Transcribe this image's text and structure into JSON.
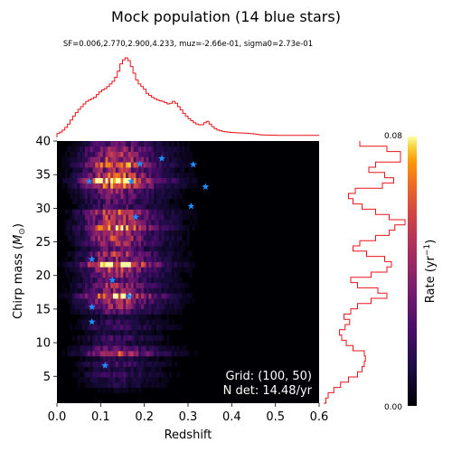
{
  "chart_data": {
    "type": "heatmap",
    "title": "Mock population (14 blue stars)",
    "subtitle": "SF=0.006,2.770,2.900,4.233, muz=-2.66e-01, sigma0=2.73e-01",
    "xlabel": "Redshift",
    "ylabel": "Chirp mass (M☉)",
    "ylabel_main": "Chirp mass (",
    "ylabel_unit_symbol": "M",
    "ylabel_unit_sub": "⊙",
    "ylabel_close": ")",
    "xlim": [
      0.0,
      0.6
    ],
    "ylim": [
      1.0,
      40.0
    ],
    "xticks": [
      0.0,
      0.1,
      0.2,
      0.3,
      0.4,
      0.5,
      0.6
    ],
    "xtick_labels": [
      "0.0",
      "0.1",
      "0.2",
      "0.3",
      "0.4",
      "0.5",
      "0.6"
    ],
    "yticks": [
      5,
      10,
      15,
      20,
      25,
      30,
      35,
      40
    ],
    "ytick_labels": [
      "5",
      "10",
      "15",
      "20",
      "25",
      "30",
      "35",
      "40"
    ],
    "grid_shape": [
      100,
      50
    ],
    "colorbar": {
      "label_main": "Rate (yr",
      "label_sup": "−1",
      "label_close": ")",
      "vmin": 0.0,
      "vmax": 0.08,
      "tick_labels": [
        "0.00",
        "0.08"
      ],
      "colormap": "inferno"
    },
    "annotation": {
      "grid_text": "Grid: (100, 50)",
      "ndet_text": "N det: 14.48/yr"
    },
    "stars": [
      {
        "z": 0.11,
        "mc": 6.6
      },
      {
        "z": 0.08,
        "mc": 13.1
      },
      {
        "z": 0.08,
        "mc": 15.3
      },
      {
        "z": 0.165,
        "mc": 16.9
      },
      {
        "z": 0.127,
        "mc": 19.3
      },
      {
        "z": 0.08,
        "mc": 22.4
      },
      {
        "z": 0.18,
        "mc": 28.7
      },
      {
        "z": 0.307,
        "mc": 30.3
      },
      {
        "z": 0.34,
        "mc": 33.2
      },
      {
        "z": 0.074,
        "mc": 34.0
      },
      {
        "z": 0.17,
        "mc": 34.0
      },
      {
        "z": 0.19,
        "mc": 36.6
      },
      {
        "z": 0.312,
        "mc": 36.5
      },
      {
        "z": 0.24,
        "mc": 37.4
      }
    ],
    "marginal_z": {
      "bin_edges_start": 0.0,
      "bin_width": 0.006,
      "values": [
        0.6,
        0.8,
        1.1,
        1.5,
        2.0,
        2.6,
        3.2,
        3.7,
        4.2,
        4.6,
        5.0,
        5.4,
        5.6,
        5.8,
        6.0,
        6.4,
        6.8,
        7.1,
        7.3,
        7.6,
        8.0,
        8.4,
        9.0,
        9.9,
        11.0,
        11.6,
        11.9,
        11.5,
        10.6,
        9.6,
        8.6,
        8.0,
        7.6,
        7.2,
        6.6,
        6.3,
        6.0,
        5.8,
        5.6,
        5.5,
        5.4,
        5.2,
        5.0,
        5.1,
        5.4,
        5.1,
        4.6,
        4.1,
        3.6,
        3.2,
        2.8,
        2.5,
        2.2,
        2.0,
        1.9,
        1.9,
        2.2,
        2.4,
        2.0,
        1.6,
        1.3,
        1.1,
        1.0,
        0.9,
        0.85,
        0.8,
        0.75,
        0.72,
        0.7,
        0.68,
        0.66,
        0.64,
        0.62,
        0.6,
        0.55,
        0.5,
        0.45,
        0.4,
        0.38,
        0.36,
        0.35,
        0.34,
        0.33,
        0.32,
        0.31,
        0.3,
        0.3,
        0.3,
        0.3,
        0.3,
        0.3,
        0.3,
        0.3,
        0.3,
        0.3,
        0.3,
        0.3,
        0.3,
        0.3,
        0.3
      ]
    },
    "marginal_mc": {
      "bin_edges_start": 1.0,
      "bin_width": 0.78,
      "values": [
        0.2,
        0.4,
        0.9,
        1.5,
        2.2,
        3.0,
        3.4,
        3.6,
        3.7,
        3.6,
        2.6,
        2.0,
        1.6,
        1.4,
        1.9,
        2.3,
        1.8,
        2.4,
        3.0,
        4.2,
        5.6,
        4.8,
        3.0,
        2.4,
        4.2,
        5.6,
        6.0,
        5.4,
        3.8,
        2.6,
        3.2,
        4.6,
        5.8,
        6.3,
        7.2,
        5.8,
        4.6,
        3.4,
        2.6,
        2.2,
        2.8,
        5.2,
        6.2,
        5.4,
        4.0,
        4.6,
        6.8,
        6.8,
        5.6,
        3.2
      ]
    }
  }
}
